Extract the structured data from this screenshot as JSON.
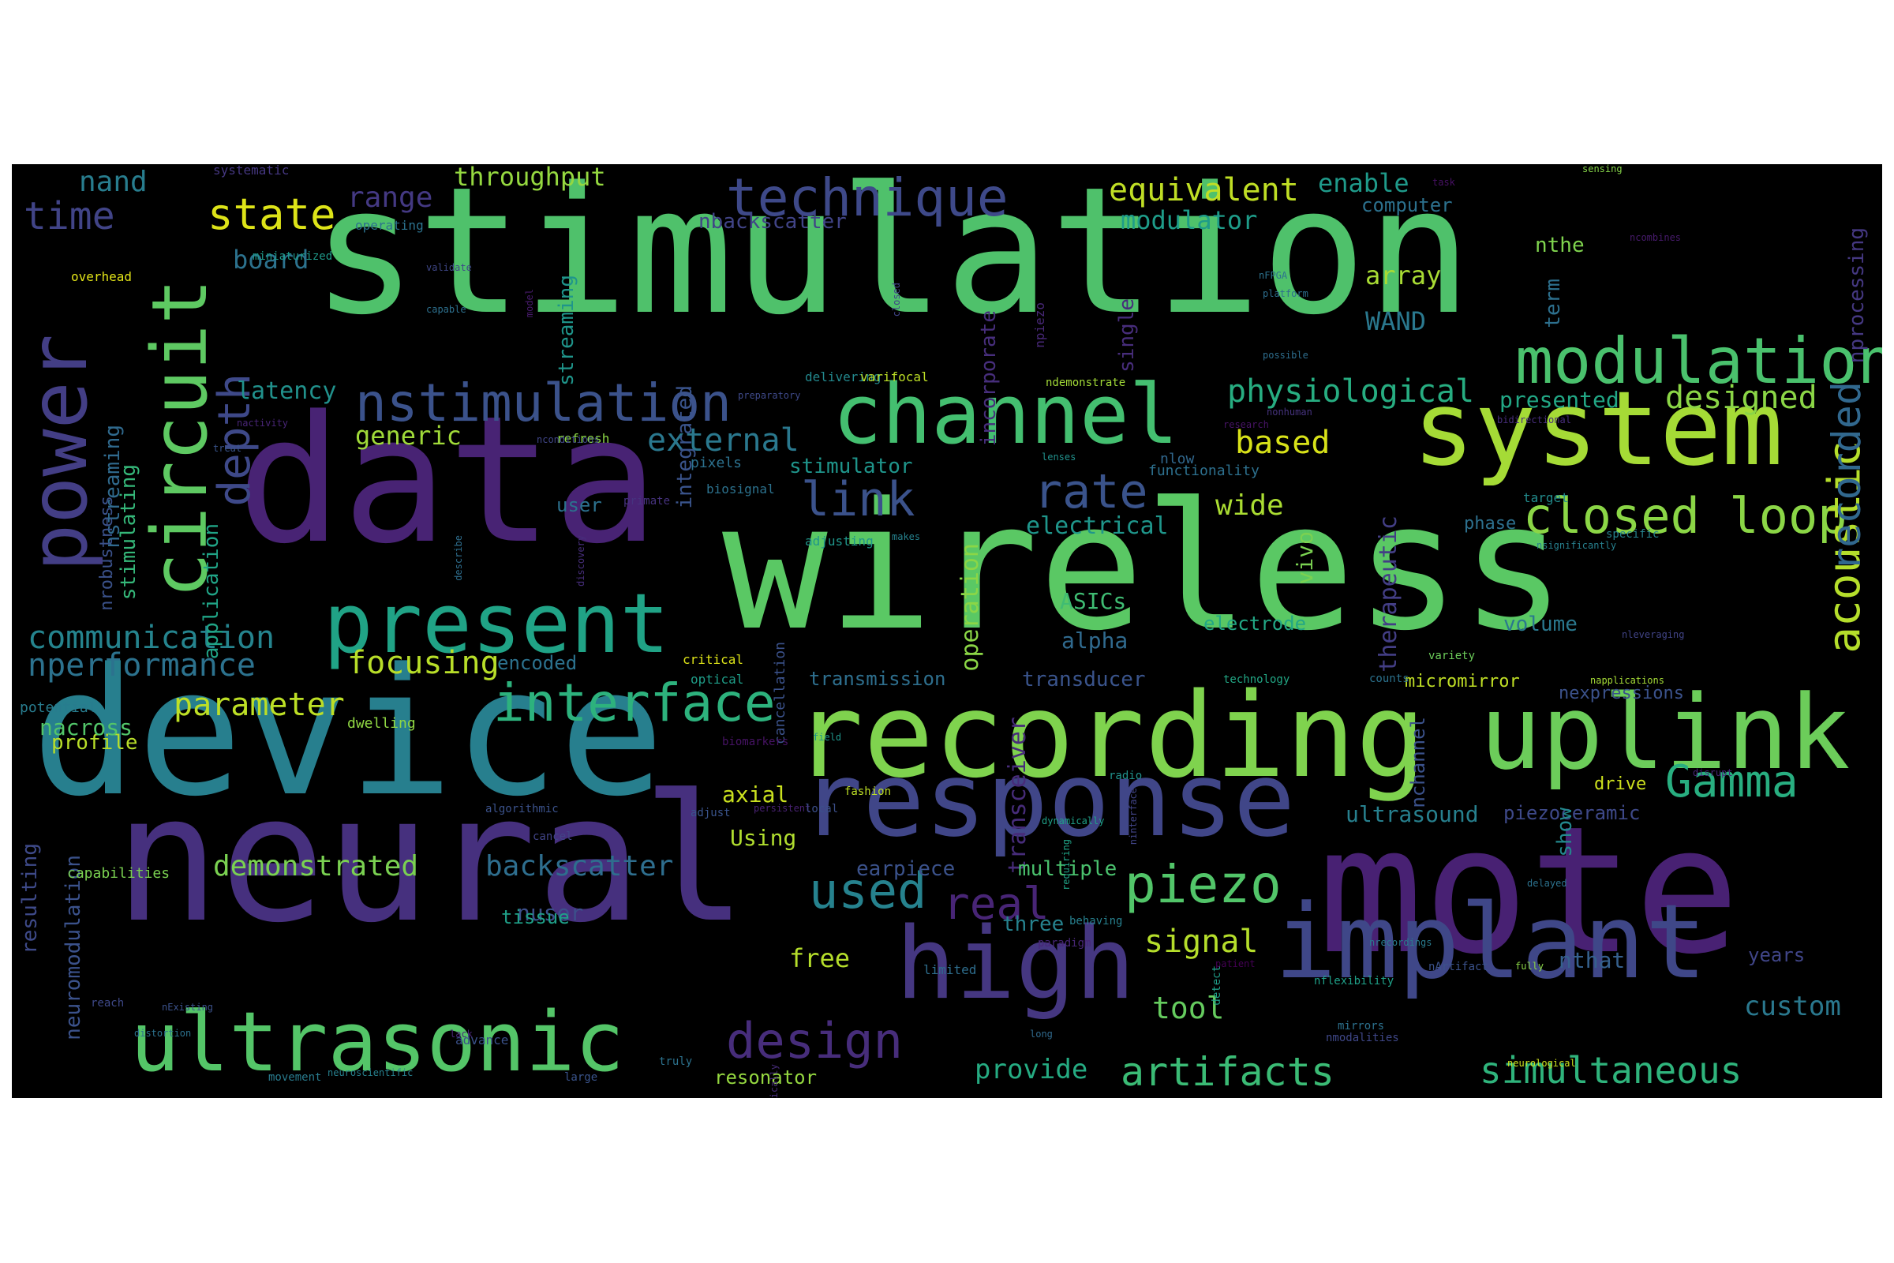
{
  "words": [
    {
      "t": "stimulation",
      "c": "#4fc16b"
    },
    {
      "t": "wireless",
      "c": "#5ac864"
    },
    {
      "t": "data",
      "c": "#482374"
    },
    {
      "t": "device",
      "c": "#277f8e"
    },
    {
      "t": "neural",
      "c": "#46307e"
    },
    {
      "t": "mote",
      "c": "#482173"
    },
    {
      "t": "recording",
      "c": "#7fd34e"
    },
    {
      "t": "uplink",
      "c": "#6ccd5a"
    },
    {
      "t": "system",
      "c": "#a5db36"
    },
    {
      "t": "modulation",
      "c": "#4ac16d"
    },
    {
      "t": "response",
      "c": "#404688"
    },
    {
      "t": "implant",
      "c": "#3f4788"
    },
    {
      "t": "high",
      "c": "#453781"
    },
    {
      "t": "ultrasonic",
      "c": "#54c568"
    },
    {
      "t": "present",
      "c": "#20a386"
    },
    {
      "t": "channel",
      "c": "#44bf70"
    },
    {
      "t": "power",
      "c": "#433e85"
    },
    {
      "t": "circuit",
      "c": "#5ec962"
    },
    {
      "t": "interface",
      "c": "#2db27d"
    },
    {
      "t": "technique",
      "c": "#3e4989"
    },
    {
      "t": "nstimulation",
      "c": "#3b528b"
    },
    {
      "t": "design",
      "c": "#472d7b"
    },
    {
      "t": "piezo",
      "c": "#52c569"
    },
    {
      "t": "closed loop",
      "c": "#8bd646"
    },
    {
      "t": "rate",
      "c": "#3a538b"
    },
    {
      "t": "link",
      "c": "#3b528b"
    },
    {
      "t": "depth",
      "c": "#3e4989"
    },
    {
      "t": "acoustic",
      "c": "#b5de2b"
    },
    {
      "t": "recorded",
      "c": "#31688e"
    },
    {
      "t": "used",
      "c": "#26828e"
    },
    {
      "t": "real",
      "c": "#482576"
    },
    {
      "t": "Gamma",
      "c": "#28ae80"
    },
    {
      "t": "artifacts",
      "c": "#3bbb75"
    },
    {
      "t": "simultaneous",
      "c": "#2fb47c"
    },
    {
      "t": "state",
      "c": "#dde318"
    },
    {
      "t": "time",
      "c": "#414487"
    },
    {
      "t": "equivalent",
      "c": "#c0df25"
    },
    {
      "t": "physiological",
      "c": "#27ad81"
    },
    {
      "t": "based",
      "c": "#d8e219"
    },
    {
      "t": "designed",
      "c": "#8bd646"
    },
    {
      "t": "external",
      "c": "#2a788e"
    },
    {
      "t": "communication",
      "c": "#25848e"
    },
    {
      "t": "nperformance",
      "c": "#2c728e"
    },
    {
      "t": "focusing",
      "c": "#b8de29"
    },
    {
      "t": "parameter",
      "c": "#bddf26"
    },
    {
      "t": "backscatter",
      "c": "#2e6e8e"
    },
    {
      "t": "demonstrated",
      "c": "#7ad151"
    },
    {
      "t": "signal",
      "c": "#b5de2b"
    },
    {
      "t": "tool",
      "c": "#65cb5e"
    },
    {
      "t": "custom",
      "c": "#2a788e"
    },
    {
      "t": "provide",
      "c": "#25ab82"
    },
    {
      "t": "range",
      "c": "#443983"
    },
    {
      "t": "nand",
      "c": "#287d8e"
    },
    {
      "t": "throughput",
      "c": "#95d840"
    },
    {
      "t": "enable",
      "c": "#1f9a8a"
    },
    {
      "t": "modulator",
      "c": "#1e9c89"
    },
    {
      "t": "latency",
      "c": "#21918c"
    },
    {
      "t": "generic",
      "c": "#a0da39"
    },
    {
      "t": "wide",
      "c": "#aadc32"
    },
    {
      "t": "electrical",
      "c": "#1f968b"
    },
    {
      "t": "board",
      "c": "#2c728e"
    },
    {
      "t": "array",
      "c": "#a8db34"
    },
    {
      "t": "WAND",
      "c": "#2a788e"
    },
    {
      "t": "presented",
      "c": "#22a785"
    },
    {
      "t": "operation",
      "c": "#8bd646"
    },
    {
      "t": "transceiver",
      "c": "#472c7a"
    },
    {
      "t": "therapeutic",
      "c": "#433e85"
    },
    {
      "t": "ASICs",
      "c": "#3fbc73"
    },
    {
      "t": "alpha",
      "c": "#306a8e"
    },
    {
      "t": "electrode",
      "c": "#22a785"
    },
    {
      "t": "vivo",
      "c": "#7ad151"
    },
    {
      "t": "volume",
      "c": "#2a788e"
    },
    {
      "t": "transmission",
      "c": "#2e6f8e"
    },
    {
      "t": "transducer",
      "c": "#3a548c"
    },
    {
      "t": "encoded",
      "c": "#2c728e"
    },
    {
      "t": "stimulator",
      "c": "#1f958b"
    },
    {
      "t": "ultrasound",
      "c": "#27808e"
    },
    {
      "t": "piezoceramic",
      "c": "#3e4989"
    },
    {
      "t": "earpiece",
      "c": "#3b528b"
    },
    {
      "t": "multiple",
      "c": "#4ac16d"
    },
    {
      "t": "nuser",
      "c": "#3c4f8a"
    },
    {
      "t": "tissue",
      "c": "#1fa088"
    },
    {
      "t": "three",
      "c": "#26828e"
    },
    {
      "t": "free",
      "c": "#b5de2b"
    },
    {
      "t": "nthat",
      "c": "#35608d"
    },
    {
      "t": "years",
      "c": "#404588"
    },
    {
      "t": "resonator",
      "c": "#95d840"
    },
    {
      "t": "axial",
      "c": "#cae11f"
    },
    {
      "t": "Using",
      "c": "#b0dd2f"
    },
    {
      "t": "resulting",
      "c": "#3e4a89"
    },
    {
      "t": "neuromodulation",
      "c": "#3b528b"
    },
    {
      "t": "profile",
      "c": "#b8de29"
    },
    {
      "t": "nacross",
      "c": "#52c569"
    },
    {
      "t": "application",
      "c": "#20a486"
    },
    {
      "t": "nstreaming",
      "c": "#306a8e"
    },
    {
      "t": "integrated",
      "c": "#3a548c"
    },
    {
      "t": "streaming",
      "c": "#1f958b"
    },
    {
      "t": "incorporate",
      "c": "#472e7c"
    },
    {
      "t": "computer",
      "c": "#2c718e"
    },
    {
      "t": "nbackscatter",
      "c": "#414487"
    },
    {
      "t": "nthe",
      "c": "#7fd34e"
    },
    {
      "t": "term",
      "c": "#2d708e"
    },
    {
      "t": "nprocessing",
      "c": "#453882"
    },
    {
      "t": "nrobustness",
      "c": "#3b528b"
    },
    {
      "t": "stimulating",
      "c": "#35b779"
    },
    {
      "t": "capabilities",
      "c": "#7ad151"
    },
    {
      "t": "dwelling",
      "c": "#90d743"
    },
    {
      "t": "user",
      "c": "#2c718e"
    },
    {
      "t": "phase",
      "c": "#2d708e"
    },
    {
      "t": "show",
      "c": "#23898e"
    },
    {
      "t": "drive",
      "c": "#cde11d"
    },
    {
      "t": "nchannel",
      "c": "#3b528b"
    },
    {
      "t": "micromirror",
      "c": "#c0df25"
    },
    {
      "t": "nexpressions",
      "c": "#3b528b"
    },
    {
      "t": "overhead",
      "c": "#e2e418"
    },
    {
      "t": "systematic",
      "c": "#453781"
    },
    {
      "t": "operating",
      "c": "#2c728e"
    },
    {
      "t": "refresh",
      "c": "#8bd646"
    },
    {
      "t": "delivering",
      "c": "#23898e"
    },
    {
      "t": "varifocal",
      "c": "#bddf26"
    },
    {
      "t": "ndemonstrate",
      "c": "#a2da37"
    },
    {
      "t": "lenses",
      "c": "#21918c"
    },
    {
      "t": "nlow",
      "c": "#31688e"
    },
    {
      "t": "functionality",
      "c": "#2d708e"
    },
    {
      "t": "target",
      "c": "#228c8d"
    },
    {
      "t": "specific",
      "c": "#26828e"
    },
    {
      "t": "critical",
      "c": "#dde318"
    },
    {
      "t": "optical",
      "c": "#1f9e89"
    },
    {
      "t": "napplications",
      "c": "#a5db36"
    },
    {
      "t": "potential",
      "c": "#287c8e"
    },
    {
      "t": "miniaturized",
      "c": "#1f9a8a"
    },
    {
      "t": "single",
      "c": "#472d7b"
    },
    {
      "t": "npiezo",
      "c": "#482878"
    },
    {
      "t": "sensing",
      "c": "#86d549"
    },
    {
      "t": "task",
      "c": "#471164"
    },
    {
      "t": "ncombines",
      "c": "#481b6d"
    },
    {
      "t": "nFPGA",
      "c": "#2c728e"
    },
    {
      "t": "possible",
      "c": "#2e6e8e"
    },
    {
      "t": "platform",
      "c": "#2e6e8e"
    },
    {
      "t": "validate",
      "c": "#3f4788"
    },
    {
      "t": "capable",
      "c": "#2d708e"
    },
    {
      "t": "model",
      "c": "#481b6d"
    },
    {
      "t": "closed",
      "c": "#404588"
    },
    {
      "t": "nactivity",
      "c": "#482576"
    },
    {
      "t": "treat",
      "c": "#3a548c"
    },
    {
      "t": "nconditions",
      "c": "#404688"
    },
    {
      "t": "preparatory",
      "c": "#3e4989"
    },
    {
      "t": "research",
      "c": "#481467"
    },
    {
      "t": "nonhuman",
      "c": "#46337e"
    },
    {
      "t": "bidirectional",
      "c": "#472d7b"
    },
    {
      "t": "pixels",
      "c": "#2c718e"
    },
    {
      "t": "biosignal",
      "c": "#2c728e"
    },
    {
      "t": "primate",
      "c": "#46327e"
    },
    {
      "t": "adjusting",
      "c": "#1f968b"
    },
    {
      "t": "makes",
      "c": "#26828e"
    },
    {
      "t": "nsignificantly",
      "c": "#27808e"
    },
    {
      "t": "describe",
      "c": "#2e6e8e"
    },
    {
      "t": "discovery",
      "c": "#472e7c"
    },
    {
      "t": "cancellation",
      "c": "#3b528b"
    },
    {
      "t": "technology",
      "c": "#22a785"
    },
    {
      "t": "counts",
      "c": "#2c728e"
    },
    {
      "t": "nleveraging",
      "c": "#414487"
    },
    {
      "t": "variety",
      "c": "#6ccd5a"
    },
    {
      "t": "biomarkers",
      "c": "#471365"
    },
    {
      "t": "field",
      "c": "#1f958b"
    },
    {
      "t": "radio",
      "c": "#20928c"
    },
    {
      "t": "fashion",
      "c": "#bddf26"
    },
    {
      "t": "persistent",
      "c": "#482173"
    },
    {
      "t": "local",
      "c": "#3c4f8a"
    },
    {
      "t": "dynamically",
      "c": "#1fa088"
    },
    {
      "t": "requiring",
      "c": "#20a386"
    },
    {
      "t": "ninterface",
      "c": "#414487"
    },
    {
      "t": "algorithmic",
      "c": "#3b528b"
    },
    {
      "t": "adjust",
      "c": "#3a548c"
    },
    {
      "t": "disrupt",
      "c": "#482576"
    },
    {
      "t": "cancel",
      "c": "#414487"
    },
    {
      "t": "behaving",
      "c": "#27808e"
    },
    {
      "t": "paradigm",
      "c": "#482677"
    },
    {
      "t": "nflexibility",
      "c": "#1fa088"
    },
    {
      "t": "nrecordings",
      "c": "#297b8e"
    },
    {
      "t": "limited",
      "c": "#2e6e8e"
    },
    {
      "t": "patient",
      "c": "#440154"
    },
    {
      "t": "fully",
      "c": "#8bd646"
    },
    {
      "t": "delayed",
      "c": "#2c728e"
    },
    {
      "t": "long",
      "c": "#306a8e"
    },
    {
      "t": "detect",
      "c": "#1f9e89"
    },
    {
      "t": "mirrors",
      "c": "#2c718e"
    },
    {
      "t": "nmodalities",
      "c": "#3f4788"
    },
    {
      "t": "nArtifact",
      "c": "#3b528b"
    },
    {
      "t": "neurological",
      "c": "#cde11d"
    },
    {
      "t": "nautomatically",
      "c": "#472d7b"
    },
    {
      "t": "neuroscientific",
      "c": "#27808e"
    },
    {
      "t": "large",
      "c": "#3a548c"
    },
    {
      "t": "truly",
      "c": "#2c728e"
    },
    {
      "t": "movement",
      "c": "#297b8e"
    },
    {
      "t": "nExisting",
      "c": "#3b528b"
    },
    {
      "t": "reach",
      "c": "#3e4989"
    },
    {
      "t": "distortion",
      "c": "#2c728e"
    },
    {
      "t": "lack",
      "c": "#482677"
    },
    {
      "t": "advance",
      "c": "#3b528b"
    }
  ]
}
